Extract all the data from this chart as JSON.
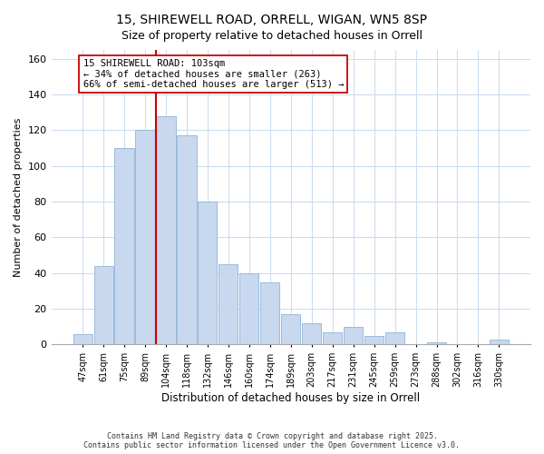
{
  "title1": "15, SHIREWELL ROAD, ORRELL, WIGAN, WN5 8SP",
  "title2": "Size of property relative to detached houses in Orrell",
  "xlabel": "Distribution of detached houses by size in Orrell",
  "ylabel": "Number of detached properties",
  "categories": [
    "47sqm",
    "61sqm",
    "75sqm",
    "89sqm",
    "104sqm",
    "118sqm",
    "132sqm",
    "146sqm",
    "160sqm",
    "174sqm",
    "189sqm",
    "203sqm",
    "217sqm",
    "231sqm",
    "245sqm",
    "259sqm",
    "273sqm",
    "288sqm",
    "302sqm",
    "316sqm",
    "330sqm"
  ],
  "values": [
    6,
    44,
    110,
    120,
    128,
    117,
    80,
    45,
    40,
    35,
    17,
    12,
    7,
    10,
    5,
    7,
    0,
    1,
    0,
    0,
    3
  ],
  "bar_color": "#c8d8ee",
  "bar_edge_color": "#90b4d8",
  "property_line_bar_index": 4,
  "property_line_color": "#cc0000",
  "annotation_title": "15 SHIREWELL ROAD: 103sqm",
  "annotation_line1": "← 34% of detached houses are smaller (263)",
  "annotation_line2": "66% of semi-detached houses are larger (513) →",
  "annotation_box_facecolor": "#ffffff",
  "annotation_box_edgecolor": "#cc0000",
  "ylim": [
    0,
    165
  ],
  "yticks": [
    0,
    20,
    40,
    60,
    80,
    100,
    120,
    140,
    160
  ],
  "footer1": "Contains HM Land Registry data © Crown copyright and database right 2025.",
  "footer2": "Contains public sector information licensed under the Open Government Licence v3.0.",
  "bg_color": "#ffffff",
  "plot_bg_color": "#ffffff",
  "grid_color": "#ccddee",
  "title_fontsize": 10,
  "subtitle_fontsize": 9
}
